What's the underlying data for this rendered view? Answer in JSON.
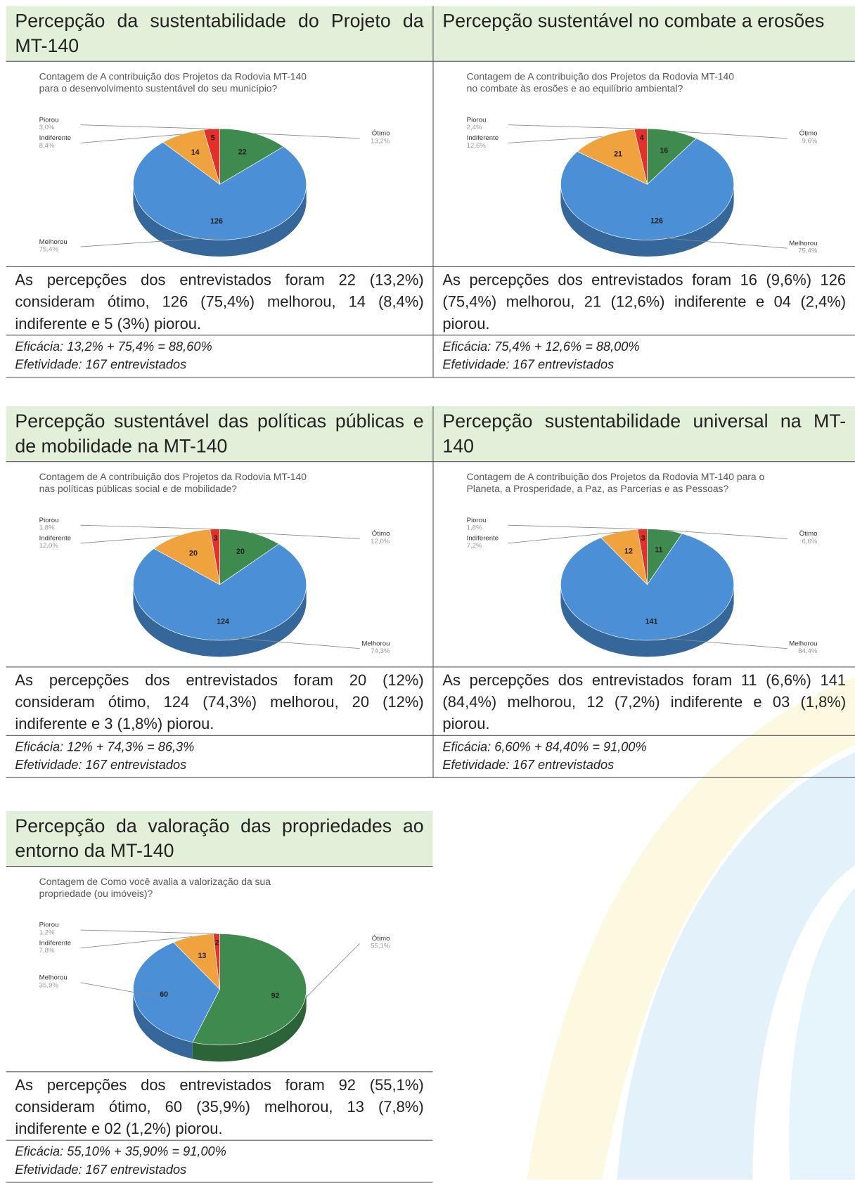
{
  "panels": [
    {
      "title": "Percepção da sustentabilidade do Projeto da MT-140",
      "chart": {
        "type": "pie",
        "title_lines": [
          "Contagem de A contribuição dos Projetos da Rodovia MT-140",
          "para o desenvolvimento sustentável do seu município?"
        ],
        "categories": [
          "Ótimo",
          "Melhorou",
          "Indiferente",
          "Piorou"
        ],
        "values": [
          22,
          126,
          14,
          5
        ],
        "percents": [
          "13,2%",
          "75,4%",
          "8,4%",
          "3,0%"
        ],
        "colors": [
          "#3f8a4e",
          "#4b8fd6",
          "#f0a23e",
          "#e2312b"
        ]
      },
      "description": "As percepções dos entrevistados foram 22 (13,2%) consideram ótimo, 126 (75,4%) melhorou, 14 (8,4%) indiferente e 5 (3%) piorou.",
      "eficacia": "Eficácia: 13,2% + 75,4% = 88,60%",
      "efetividade": "Efetividade: 167 entrevistados"
    },
    {
      "title": "Percepção sustentável no combate a erosões",
      "chart": {
        "type": "pie",
        "title_lines": [
          "Contagem de A contribuição dos Projetos da Rodovia MT-140",
          "no combate às erosões e ao equilíbrio ambiental?"
        ],
        "categories": [
          "Ótimo",
          "Melhorou",
          "Indiferente",
          "Piorou"
        ],
        "values": [
          16,
          126,
          21,
          4
        ],
        "percents": [
          "9,6%",
          "75,4%",
          "12,6%",
          "2,4%"
        ],
        "colors": [
          "#3f8a4e",
          "#4b8fd6",
          "#f0a23e",
          "#e2312b"
        ]
      },
      "description": "As percepções dos entrevistados foram 16 (9,6%) 126 (75,4%) melhorou, 21 (12,6%) indiferente e 04 (2,4%) piorou.",
      "eficacia": "Eficácia: 75,4% + 12,6% = 88,00%",
      "efetividade": "Efetividade: 167 entrevistados"
    },
    {
      "title": "Percepção sustentável das políticas públicas e de mobilidade na MT-140",
      "chart": {
        "type": "pie",
        "title_lines": [
          "Contagem de A contribuição dos Projetos da Rodovia MT-140",
          "nas políticas públicas social e de mobilidade?"
        ],
        "categories": [
          "Ótimo",
          "Melhorou",
          "Indiferente",
          "Piorou"
        ],
        "values": [
          20,
          124,
          20,
          3
        ],
        "percents": [
          "12,0%",
          "74,3%",
          "12,0%",
          "1,8%"
        ],
        "colors": [
          "#3f8a4e",
          "#4b8fd6",
          "#f0a23e",
          "#e2312b"
        ]
      },
      "description": "As percepções dos entrevistados foram 20 (12%) consideram ótimo, 124 (74,3%) melhorou, 20 (12%) indiferente e 3 (1,8%) piorou.",
      "eficacia": "Eficácia: 12% + 74,3% = 86,3%",
      "efetividade": "Efetividade: 167 entrevistados"
    },
    {
      "title": "Percepção sustentabilidade universal na MT-140",
      "chart": {
        "type": "pie",
        "title_lines": [
          "Contagem de A contribuição dos Projetos da Rodovia MT-140 para o",
          "Planeta, a Prosperidade, a Paz, as Parcerias e as Pessoas?"
        ],
        "categories": [
          "Ótimo",
          "Melhorou",
          "Indiferente",
          "Piorou"
        ],
        "values": [
          11,
          141,
          12,
          3
        ],
        "percents": [
          "6,6%",
          "84,4%",
          "7,2%",
          "1,8%"
        ],
        "colors": [
          "#3f8a4e",
          "#4b8fd6",
          "#f0a23e",
          "#e2312b"
        ]
      },
      "description": "As percepções dos entrevistados foram 11 (6,6%) 141 (84,4%) melhorou, 12 (7,2%) indiferente e 03 (1,8%) piorou.",
      "eficacia": "Eficácia: 6,60% + 84,40% = 91,00%",
      "efetividade": "Efetividade: 167 entrevistados"
    },
    {
      "title": "Percepção da valoração das propriedades ao entorno da MT-140",
      "chart": {
        "type": "pie",
        "title_lines": [
          "Contagem de Como você avalia a valorização da sua",
          "propriedade (ou imóveis)?"
        ],
        "categories": [
          "Ótimo",
          "Melhorou",
          "Indiferente",
          "Piorou"
        ],
        "values": [
          92,
          60,
          13,
          2
        ],
        "percents": [
          "55,1%",
          "35,9%",
          "7,8%",
          "1,2%"
        ],
        "colors": [
          "#3f8a4e",
          "#4b8fd6",
          "#f0a23e",
          "#e2312b"
        ]
      },
      "description": "As percepções dos entrevistados foram 92 (55,1%) consideram ótimo, 60 (35,9%) melhorou, 13 (7,8%) indiferente e 02 (1,2%) piorou.",
      "eficacia": "Eficácia: 55,10% + 35,90% = 91,00%",
      "efetividade": "Efetividade: 167 entrevistados"
    }
  ]
}
